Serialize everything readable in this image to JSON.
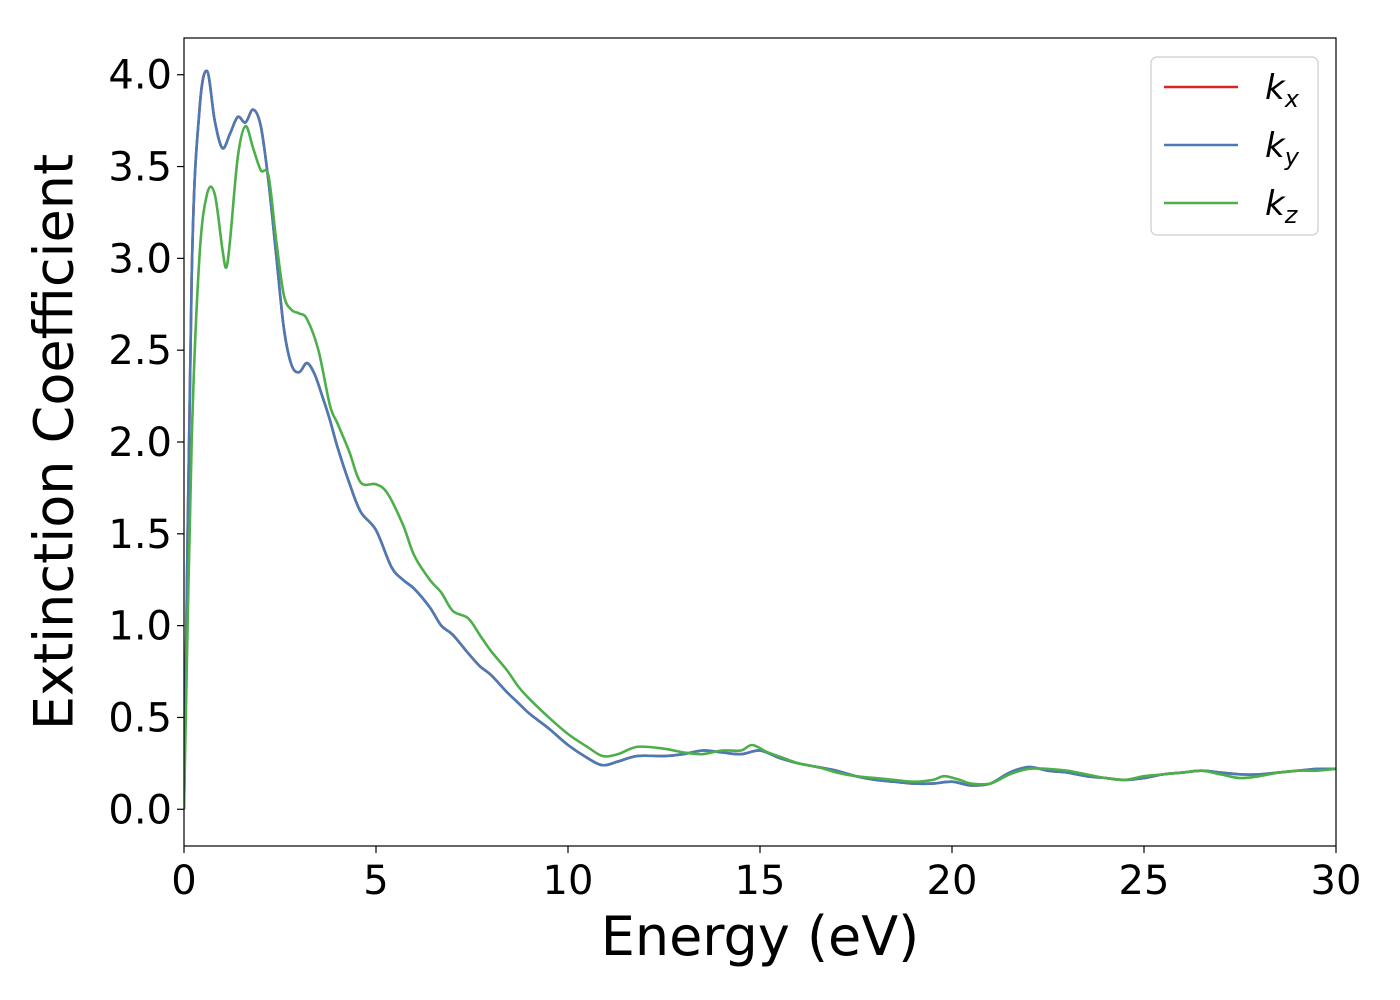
{
  "chart_data": {
    "type": "line",
    "title": "",
    "xlabel": "Energy (eV)",
    "ylabel": "Extinction Coefficient",
    "xlim": [
      0,
      30
    ],
    "ylim": [
      -0.2,
      4.2
    ],
    "xticks": [
      0,
      5,
      10,
      15,
      20,
      25,
      30
    ],
    "yticks": [
      0.0,
      0.5,
      1.0,
      1.5,
      2.0,
      2.5,
      3.0,
      3.5,
      4.0
    ],
    "grid": false,
    "legend_position": "top-right",
    "series": [
      {
        "name": "kx",
        "legend_base": "k",
        "legend_sub": "x",
        "color": "#d62728",
        "x": [
          0,
          0.2,
          0.4,
          0.6,
          0.8,
          1.0,
          1.2,
          1.4,
          1.6,
          1.8,
          2.0,
          2.2,
          2.4,
          2.6,
          2.8,
          3.0,
          3.2,
          3.4,
          3.6,
          3.8,
          4.0,
          4.3,
          4.6,
          5.0,
          5.4,
          5.7,
          6.0,
          6.4,
          6.7,
          7.0,
          7.4,
          7.7,
          8.0,
          8.4,
          8.7,
          9.0,
          9.5,
          10.0,
          10.5,
          10.9,
          11.3,
          11.8,
          12.5,
          13.0,
          13.5,
          14.0,
          14.5,
          15.0,
          15.5,
          16.0,
          16.5,
          17.0,
          17.5,
          18.0,
          18.5,
          19.0,
          19.5,
          20.0,
          20.5,
          21.0,
          21.5,
          22.0,
          22.5,
          23.0,
          23.5,
          24.0,
          24.5,
          25.0,
          25.5,
          26.0,
          26.5,
          27.0,
          27.5,
          28.0,
          28.5,
          29.0,
          29.5,
          30.0
        ],
        "y": [
          0.0,
          2.9,
          3.8,
          4.02,
          3.75,
          3.6,
          3.68,
          3.77,
          3.74,
          3.81,
          3.72,
          3.42,
          3.02,
          2.62,
          2.42,
          2.38,
          2.43,
          2.37,
          2.25,
          2.12,
          1.97,
          1.78,
          1.62,
          1.52,
          1.32,
          1.25,
          1.2,
          1.1,
          1.0,
          0.95,
          0.85,
          0.78,
          0.73,
          0.64,
          0.58,
          0.52,
          0.44,
          0.35,
          0.28,
          0.24,
          0.26,
          0.29,
          0.29,
          0.3,
          0.32,
          0.31,
          0.3,
          0.32,
          0.28,
          0.25,
          0.23,
          0.21,
          0.18,
          0.16,
          0.15,
          0.14,
          0.14,
          0.15,
          0.13,
          0.14,
          0.2,
          0.23,
          0.21,
          0.2,
          0.18,
          0.17,
          0.16,
          0.17,
          0.19,
          0.2,
          0.21,
          0.2,
          0.19,
          0.19,
          0.2,
          0.21,
          0.22,
          0.22
        ]
      },
      {
        "name": "ky",
        "legend_base": "k",
        "legend_sub": "y",
        "color": "#4a7bb5",
        "x": [
          0,
          0.2,
          0.4,
          0.6,
          0.8,
          1.0,
          1.2,
          1.4,
          1.6,
          1.8,
          2.0,
          2.2,
          2.4,
          2.6,
          2.8,
          3.0,
          3.2,
          3.4,
          3.6,
          3.8,
          4.0,
          4.3,
          4.6,
          5.0,
          5.4,
          5.7,
          6.0,
          6.4,
          6.7,
          7.0,
          7.4,
          7.7,
          8.0,
          8.4,
          8.7,
          9.0,
          9.5,
          10.0,
          10.5,
          10.9,
          11.3,
          11.8,
          12.5,
          13.0,
          13.5,
          14.0,
          14.5,
          15.0,
          15.5,
          16.0,
          16.5,
          17.0,
          17.5,
          18.0,
          18.5,
          19.0,
          19.5,
          20.0,
          20.5,
          21.0,
          21.5,
          22.0,
          22.5,
          23.0,
          23.5,
          24.0,
          24.5,
          25.0,
          25.5,
          26.0,
          26.5,
          27.0,
          27.5,
          28.0,
          28.5,
          29.0,
          29.5,
          30.0
        ],
        "y": [
          0.0,
          2.9,
          3.8,
          4.02,
          3.75,
          3.6,
          3.68,
          3.77,
          3.74,
          3.81,
          3.72,
          3.42,
          3.02,
          2.62,
          2.42,
          2.38,
          2.43,
          2.37,
          2.25,
          2.12,
          1.97,
          1.78,
          1.62,
          1.52,
          1.32,
          1.25,
          1.2,
          1.1,
          1.0,
          0.95,
          0.85,
          0.78,
          0.73,
          0.64,
          0.58,
          0.52,
          0.44,
          0.35,
          0.28,
          0.24,
          0.26,
          0.29,
          0.29,
          0.3,
          0.32,
          0.31,
          0.3,
          0.32,
          0.28,
          0.25,
          0.23,
          0.21,
          0.18,
          0.16,
          0.15,
          0.14,
          0.14,
          0.15,
          0.13,
          0.14,
          0.2,
          0.23,
          0.21,
          0.2,
          0.18,
          0.17,
          0.16,
          0.17,
          0.19,
          0.2,
          0.21,
          0.2,
          0.19,
          0.19,
          0.2,
          0.21,
          0.22,
          0.22
        ]
      },
      {
        "name": "kz",
        "legend_base": "k",
        "legend_sub": "z",
        "color": "#4daf4a",
        "x": [
          0,
          0.2,
          0.4,
          0.6,
          0.8,
          1.0,
          1.1,
          1.2,
          1.4,
          1.6,
          1.8,
          2.0,
          2.2,
          2.4,
          2.6,
          2.8,
          3.0,
          3.2,
          3.5,
          3.8,
          4.0,
          4.3,
          4.6,
          5.0,
          5.3,
          5.7,
          6.0,
          6.4,
          6.7,
          7.0,
          7.4,
          7.7,
          8.0,
          8.4,
          8.7,
          9.0,
          9.5,
          10.0,
          10.5,
          10.9,
          11.3,
          11.8,
          12.5,
          13.0,
          13.5,
          14.0,
          14.5,
          14.8,
          15.2,
          15.6,
          16.0,
          16.5,
          17.0,
          17.5,
          18.0,
          18.5,
          19.0,
          19.5,
          19.8,
          20.2,
          20.5,
          21.0,
          21.5,
          22.0,
          22.5,
          23.0,
          23.5,
          24.0,
          24.5,
          25.0,
          25.5,
          26.0,
          26.5,
          27.0,
          27.5,
          28.0,
          28.5,
          29.0,
          29.5,
          30.0
        ],
        "y": [
          0.0,
          2.0,
          3.0,
          3.35,
          3.35,
          3.05,
          2.95,
          3.1,
          3.55,
          3.72,
          3.6,
          3.48,
          3.45,
          3.1,
          2.8,
          2.72,
          2.7,
          2.67,
          2.5,
          2.2,
          2.1,
          1.95,
          1.78,
          1.77,
          1.72,
          1.55,
          1.38,
          1.25,
          1.18,
          1.08,
          1.04,
          0.95,
          0.86,
          0.76,
          0.67,
          0.6,
          0.5,
          0.41,
          0.34,
          0.29,
          0.3,
          0.34,
          0.33,
          0.31,
          0.3,
          0.32,
          0.32,
          0.35,
          0.31,
          0.28,
          0.25,
          0.23,
          0.2,
          0.18,
          0.17,
          0.16,
          0.15,
          0.16,
          0.18,
          0.16,
          0.14,
          0.14,
          0.19,
          0.22,
          0.22,
          0.21,
          0.19,
          0.17,
          0.16,
          0.18,
          0.19,
          0.2,
          0.21,
          0.19,
          0.17,
          0.18,
          0.2,
          0.21,
          0.21,
          0.22
        ]
      }
    ]
  }
}
